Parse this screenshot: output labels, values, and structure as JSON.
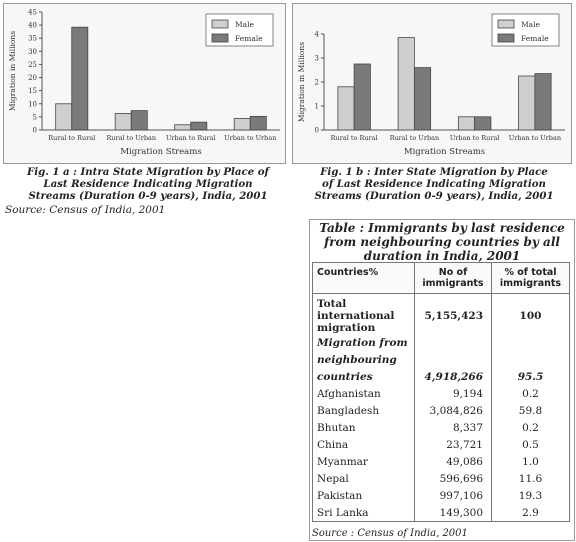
{
  "chart_data": [
    {
      "type": "bar",
      "ylabel": "Migration in Millions",
      "xlabel": "Migration Streams",
      "ylim": [
        0,
        45
      ],
      "yticks": [
        0,
        5,
        10,
        15,
        20,
        25,
        30,
        35,
        40,
        45
      ],
      "categories": [
        "Rural to Rural",
        "Rural to Urban",
        "Urban to Rural",
        "Urban to Urban"
      ],
      "series": [
        {
          "name": "Male",
          "values": [
            10.0,
            6.3,
            2.0,
            4.4
          ]
        },
        {
          "name": "Female",
          "values": [
            39.2,
            7.4,
            3.0,
            5.2
          ]
        }
      ],
      "legend": "top-right"
    },
    {
      "type": "bar",
      "ylabel": "Migration in Millions",
      "xlabel": "Migration Streams",
      "ylim": [
        0,
        4
      ],
      "yticks": [
        0,
        1,
        2,
        3,
        4
      ],
      "categories": [
        "Rural to Rural",
        "Rural to Urban",
        "Urban to Rural",
        "Urban to Urban"
      ],
      "series": [
        {
          "name": "Male",
          "values": [
            1.8,
            3.85,
            0.55,
            2.25
          ]
        },
        {
          "name": "Female",
          "values": [
            2.75,
            2.6,
            0.55,
            2.35
          ]
        }
      ],
      "legend": "top-right"
    }
  ],
  "colors": {
    "male": "#cfcfcf",
    "female": "#7a7a7a",
    "panel_bg": "#f7f7f7"
  },
  "fig1_caption": "Fig.    1 a : Intra State Migration by Place of Last Residence Indicating Migration Streams (Duration 0-9 years), India, 2001",
  "fig2_caption": "Fig.    1 b : Inter State Migration by Place of Last Residence Indicating Migration Streams (Duration 0-9 years), India, 2001",
  "source_top": "Source: Census of India, 2001",
  "table": {
    "title": "Table       : Immigrants by last residence from neighbouring countries by all duration in India, 2001",
    "headers": [
      "Countries%",
      "No of immigrants",
      "% of total immigrants"
    ],
    "rows": [
      {
        "country": "Total international migration",
        "count": "5,155,423",
        "pct": "100"
      },
      {
        "country": "Migration from",
        "count": "",
        "pct": ""
      },
      {
        "country": "neighbouring",
        "count": "",
        "pct": ""
      },
      {
        "country": "countries",
        "count": "4,918,266",
        "pct": "95.5"
      },
      {
        "country": "Afghanistan",
        "count": "9,194",
        "pct": "0.2"
      },
      {
        "country": "Bangladesh",
        "count": "3,084,826",
        "pct": "59.8"
      },
      {
        "country": "Bhutan",
        "count": "8,337",
        "pct": "0.2"
      },
      {
        "country": "China",
        "count": "23,721",
        "pct": "0.5"
      },
      {
        "country": "Myanmar",
        "count": "49,086",
        "pct": "1.0"
      },
      {
        "country": "Nepal",
        "count": "596,696",
        "pct": "11.6"
      },
      {
        "country": "Pakistan",
        "count": "997,106",
        "pct": "19.3"
      },
      {
        "country": "Sri Lanka",
        "count": "149,300",
        "pct": "2.9"
      }
    ],
    "source": "Source : Census of India, 2001"
  }
}
